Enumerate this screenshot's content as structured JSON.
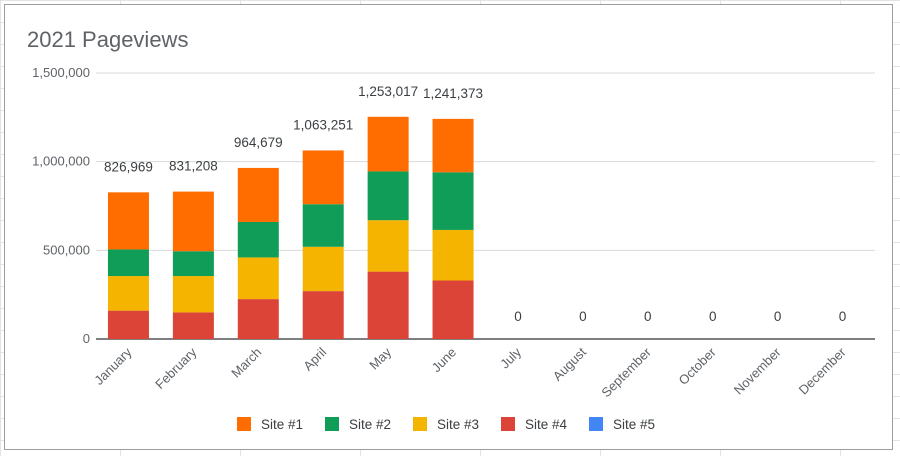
{
  "chart_data": {
    "type": "bar",
    "stacked": true,
    "title": "2021 Pageviews",
    "xlabel": "",
    "ylabel": "",
    "ylim": [
      0,
      1500000
    ],
    "y_ticks": [
      0,
      500000,
      1000000,
      1500000
    ],
    "y_tick_labels": [
      "0",
      "500,000",
      "1,000,000",
      "1,500,000"
    ],
    "grid": true,
    "legend_position": "bottom",
    "categories": [
      "January",
      "February",
      "March",
      "April",
      "May",
      "June",
      "July",
      "August",
      "September",
      "October",
      "November",
      "December"
    ],
    "series": [
      {
        "name": "Site #4",
        "color": "#db4437",
        "values": [
          160000,
          150000,
          225000,
          270000,
          380000,
          330000,
          0,
          0,
          0,
          0,
          0,
          0
        ]
      },
      {
        "name": "Site #3",
        "color": "#f4b400",
        "values": [
          195000,
          205000,
          235000,
          250000,
          290000,
          285000,
          0,
          0,
          0,
          0,
          0,
          0
        ]
      },
      {
        "name": "Site #2",
        "color": "#0f9d58",
        "values": [
          150000,
          140000,
          200000,
          240000,
          275000,
          325000,
          0,
          0,
          0,
          0,
          0,
          0
        ]
      },
      {
        "name": "Site #1",
        "color": "#ff6d01",
        "values": [
          321969,
          336208,
          304679,
          303251,
          308017,
          301373,
          0,
          0,
          0,
          0,
          0,
          0
        ]
      },
      {
        "name": "Site #5",
        "color": "#4285f4",
        "values": [
          0,
          0,
          0,
          0,
          0,
          0,
          0,
          0,
          0,
          0,
          0,
          0
        ]
      }
    ],
    "totals": [
      826969,
      831208,
      964679,
      1063251,
      1253017,
      1241373,
      0,
      0,
      0,
      0,
      0,
      0
    ],
    "total_labels": [
      "826,969",
      "831,208",
      "964,679",
      "1,063,251",
      "1,253,017",
      "1,241,373",
      "0",
      "0",
      "0",
      "0",
      "0",
      "0"
    ],
    "legend_order": [
      "Site #1",
      "Site #2",
      "Site #3",
      "Site #4",
      "Site #5"
    ]
  }
}
